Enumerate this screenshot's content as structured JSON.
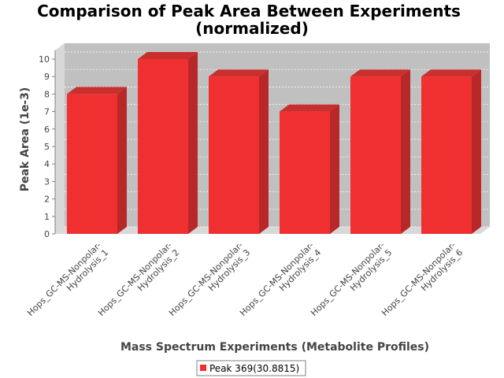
{
  "chart_data": {
    "type": "bar",
    "title": "Comparison of Peak Area Between Experiments",
    "subtitle": "(normalized)",
    "xlabel": "Mass Spectrum Experiments (Metabolite Profiles)",
    "ylabel": "Peak Area (1e-3)",
    "categories": [
      [
        "Hops_GC-MS-Nonpolar-",
        "Hydrolysis_1"
      ],
      [
        "Hops_GC-MS-Nonpolar-",
        "Hydrolysis_2"
      ],
      [
        "Hops_GC-MS-Nonpolar-",
        "Hydrolysis_3"
      ],
      [
        "Hops_GC-MS-Nonpolar-",
        "Hydrolysis_4"
      ],
      [
        "Hops_GC-MS-Nonpolar-",
        "Hydrolysis_5"
      ],
      [
        "Hops_GC-MS-Nonpolar-",
        "Hydrolysis_6"
      ]
    ],
    "series": [
      {
        "name": "Peak 369(30.8815)",
        "values": [
          8,
          10,
          9,
          7,
          9,
          9
        ]
      }
    ],
    "ylim": [
      0,
      10.5
    ],
    "yticks": [
      0,
      1,
      2,
      3,
      4,
      5,
      6,
      7,
      8,
      9,
      10
    ],
    "grid": true,
    "legend_position": "bottom",
    "colors": {
      "bar_front": "#f03030",
      "bar_side": "#b82828",
      "bar_top": "#c83030",
      "plot_background": "#c0c0c0",
      "plot_wall": "#d8d8d8",
      "grid": "#ffffff"
    }
  }
}
